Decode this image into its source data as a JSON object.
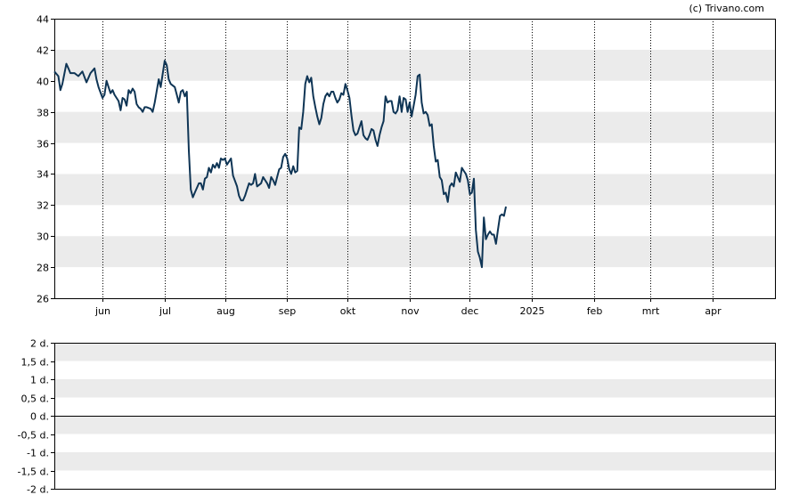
{
  "credit": "(c) Trivano.com",
  "colors": {
    "line": "#0f3555",
    "band": "#ebebeb",
    "grid_vertical": "#000000",
    "frame": "#000000"
  },
  "chart_data": [
    {
      "type": "line",
      "title": "",
      "xlabel": "",
      "ylabel": "",
      "ylim": [
        26,
        44
      ],
      "y_ticks": [
        "44",
        "42",
        "40",
        "38",
        "36",
        "34",
        "32",
        "30",
        "28",
        "26"
      ],
      "y_tick_values": [
        44,
        42,
        40,
        38,
        36,
        34,
        32,
        30,
        28,
        26
      ],
      "x_ticks": [
        "jun",
        "jul",
        "aug",
        "sep",
        "okt",
        "nov",
        "dec",
        "2025",
        "feb",
        "mrt",
        "apr"
      ],
      "x_tick_days": [
        24,
        55,
        85,
        116,
        146,
        177,
        207,
        238,
        269,
        297,
        328
      ],
      "x_range_days": [
        0,
        359
      ],
      "grid": "dotted vertical lines at month ticks, alternating horizontal bands",
      "series": [
        {
          "points": [
            [
              0,
              40.6
            ],
            [
              2,
              40.3
            ],
            [
              3,
              39.4
            ],
            [
              4,
              39.8
            ],
            [
              6,
              41.1
            ],
            [
              7,
              40.8
            ],
            [
              8,
              40.5
            ],
            [
              10,
              40.5
            ],
            [
              12,
              40.3
            ],
            [
              14,
              40.6
            ],
            [
              16,
              39.9
            ],
            [
              18,
              40.5
            ],
            [
              20,
              40.8
            ],
            [
              21,
              40.1
            ],
            [
              22,
              39.6
            ],
            [
              24,
              38.9
            ],
            [
              25,
              39.1
            ],
            [
              26,
              40.0
            ],
            [
              28,
              39.2
            ],
            [
              29,
              39.4
            ],
            [
              30,
              39.1
            ],
            [
              32,
              38.7
            ],
            [
              33,
              38.1
            ],
            [
              34,
              38.9
            ],
            [
              35,
              38.8
            ],
            [
              36,
              38.4
            ],
            [
              37,
              39.4
            ],
            [
              38,
              39.2
            ],
            [
              39,
              39.5
            ],
            [
              40,
              39.3
            ],
            [
              41,
              38.5
            ],
            [
              42,
              38.3
            ],
            [
              43,
              38.2
            ],
            [
              44,
              38.0
            ],
            [
              45,
              38.3
            ],
            [
              46,
              38.3
            ],
            [
              48,
              38.2
            ],
            [
              49,
              38.0
            ],
            [
              50,
              38.6
            ],
            [
              52,
              40.1
            ],
            [
              53,
              39.6
            ],
            [
              55,
              41.3
            ],
            [
              56,
              41.0
            ],
            [
              57,
              40.1
            ],
            [
              58,
              39.8
            ],
            [
              60,
              39.6
            ],
            [
              61,
              39.1
            ],
            [
              62,
              38.6
            ],
            [
              63,
              39.3
            ],
            [
              64,
              39.4
            ],
            [
              65,
              39.0
            ],
            [
              66,
              39.3
            ],
            [
              67,
              35.5
            ],
            [
              68,
              33.0
            ],
            [
              69,
              32.5
            ],
            [
              70,
              32.8
            ],
            [
              72,
              33.4
            ],
            [
              73,
              33.4
            ],
            [
              74,
              33.0
            ],
            [
              75,
              33.7
            ],
            [
              76,
              33.8
            ],
            [
              77,
              34.4
            ],
            [
              78,
              34.1
            ],
            [
              79,
              34.6
            ],
            [
              80,
              34.4
            ],
            [
              81,
              34.7
            ],
            [
              82,
              34.4
            ],
            [
              83,
              35.0
            ],
            [
              84,
              34.9
            ],
            [
              85,
              35.0
            ],
            [
              86,
              34.6
            ],
            [
              88,
              35.0
            ],
            [
              89,
              33.9
            ],
            [
              91,
              33.2
            ],
            [
              92,
              32.6
            ],
            [
              93,
              32.3
            ],
            [
              94,
              32.3
            ],
            [
              95,
              32.6
            ],
            [
              96,
              33.0
            ],
            [
              97,
              33.4
            ],
            [
              98,
              33.3
            ],
            [
              99,
              33.4
            ],
            [
              100,
              34.0
            ],
            [
              101,
              33.2
            ],
            [
              102,
              33.3
            ],
            [
              103,
              33.4
            ],
            [
              104,
              33.8
            ],
            [
              105,
              33.6
            ],
            [
              106,
              33.4
            ],
            [
              107,
              33.1
            ],
            [
              108,
              33.8
            ],
            [
              109,
              33.6
            ],
            [
              110,
              33.3
            ],
            [
              111,
              33.8
            ],
            [
              112,
              34.3
            ],
            [
              113,
              34.4
            ],
            [
              114,
              35.1
            ],
            [
              115,
              35.3
            ],
            [
              116,
              35.0
            ],
            [
              117,
              34.3
            ],
            [
              118,
              34.0
            ],
            [
              119,
              34.5
            ],
            [
              120,
              34.1
            ],
            [
              121,
              34.2
            ],
            [
              122,
              37.0
            ],
            [
              123,
              36.9
            ],
            [
              124,
              38.0
            ],
            [
              125,
              39.8
            ],
            [
              126,
              40.3
            ],
            [
              127,
              39.9
            ],
            [
              128,
              40.2
            ],
            [
              129,
              39.0
            ],
            [
              130,
              38.3
            ],
            [
              131,
              37.7
            ],
            [
              132,
              37.2
            ],
            [
              133,
              37.6
            ],
            [
              134,
              38.5
            ],
            [
              135,
              39.0
            ],
            [
              136,
              39.2
            ],
            [
              137,
              39.0
            ],
            [
              138,
              39.3
            ],
            [
              139,
              39.3
            ],
            [
              140,
              38.9
            ],
            [
              141,
              38.6
            ],
            [
              142,
              38.8
            ],
            [
              143,
              39.2
            ],
            [
              144,
              39.1
            ],
            [
              145,
              39.8
            ],
            [
              146,
              39.4
            ],
            [
              147,
              38.9
            ],
            [
              148,
              37.8
            ],
            [
              149,
              36.8
            ],
            [
              150,
              36.5
            ],
            [
              151,
              36.6
            ],
            [
              152,
              37.0
            ],
            [
              153,
              37.4
            ],
            [
              154,
              36.5
            ],
            [
              155,
              36.3
            ],
            [
              156,
              36.2
            ],
            [
              157,
              36.5
            ],
            [
              158,
              36.9
            ],
            [
              159,
              36.8
            ],
            [
              160,
              36.2
            ],
            [
              161,
              35.8
            ],
            [
              162,
              36.5
            ],
            [
              163,
              37.0
            ],
            [
              164,
              37.4
            ],
            [
              165,
              39.0
            ],
            [
              166,
              38.6
            ],
            [
              167,
              38.7
            ],
            [
              168,
              38.7
            ],
            [
              169,
              38.0
            ],
            [
              170,
              37.9
            ],
            [
              171,
              38.1
            ],
            [
              172,
              39.0
            ],
            [
              173,
              38.0
            ],
            [
              174,
              38.9
            ],
            [
              175,
              38.8
            ],
            [
              176,
              38.0
            ],
            [
              177,
              38.6
            ],
            [
              178,
              37.7
            ],
            [
              179,
              38.4
            ],
            [
              180,
              39.1
            ],
            [
              181,
              40.3
            ],
            [
              182,
              40.4
            ],
            [
              183,
              38.6
            ],
            [
              184,
              37.9
            ],
            [
              185,
              38.0
            ],
            [
              186,
              37.8
            ],
            [
              187,
              37.1
            ],
            [
              188,
              37.2
            ],
            [
              189,
              35.8
            ],
            [
              190,
              34.8
            ],
            [
              191,
              34.9
            ],
            [
              192,
              33.8
            ],
            [
              193,
              33.6
            ],
            [
              194,
              32.7
            ],
            [
              195,
              32.8
            ],
            [
              196,
              32.2
            ],
            [
              197,
              33.2
            ],
            [
              198,
              33.4
            ],
            [
              199,
              33.2
            ],
            [
              200,
              34.1
            ],
            [
              201,
              33.8
            ],
            [
              202,
              33.5
            ],
            [
              203,
              34.4
            ],
            [
              204,
              34.2
            ],
            [
              205,
              34.0
            ],
            [
              206,
              33.6
            ],
            [
              207,
              32.7
            ],
            [
              208,
              32.8
            ],
            [
              209,
              33.7
            ],
            [
              210,
              30.4
            ],
            [
              211,
              29.0
            ],
            [
              212,
              28.6
            ],
            [
              213,
              28.0
            ],
            [
              214,
              31.2
            ],
            [
              215,
              29.8
            ],
            [
              216,
              30.1
            ],
            [
              217,
              30.3
            ],
            [
              218,
              30.1
            ],
            [
              219,
              30.1
            ],
            [
              220,
              29.5
            ],
            [
              221,
              30.4
            ],
            [
              222,
              31.3
            ],
            [
              223,
              31.4
            ],
            [
              224,
              31.3
            ],
            [
              225,
              31.9
            ]
          ]
        }
      ]
    },
    {
      "type": "line",
      "title": "",
      "ylim": [
        -2,
        2
      ],
      "y_ticks": [
        "2 d.",
        "1,5 d.",
        "1 d.",
        "0,5 d.",
        "0 d.",
        "-0,5 d.",
        "-1 d.",
        "-1,5 d.",
        "-2 d."
      ],
      "y_tick_values": [
        2,
        1.5,
        1,
        0.5,
        0,
        -0.5,
        -1,
        -1.5,
        -2
      ],
      "zero_line": 0,
      "series": []
    }
  ]
}
